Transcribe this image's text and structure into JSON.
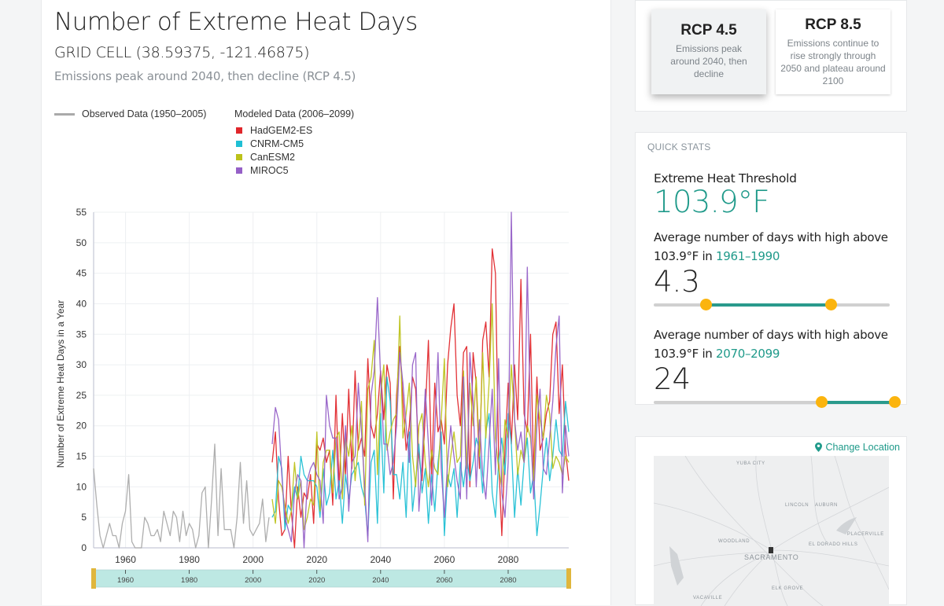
{
  "header": {
    "title": "Number of Extreme Heat Days",
    "subtitle": "GRID CELL (38.59375, -121.46875)",
    "scenario_description": "Emissions peak around 2040, then decline (RCP 4.5)"
  },
  "legend": {
    "observed_label": "Observed Data (1950–2005)",
    "modeled_label": "Modeled Data (2006–2099)",
    "models": [
      {
        "name": "HadGEM2-ES",
        "color": "#e0262b"
      },
      {
        "name": "CNRM-CM5",
        "color": "#1fbfd4"
      },
      {
        "name": "CanESM2",
        "color": "#bcc21a"
      },
      {
        "name": "MIROC5",
        "color": "#9560c7"
      }
    ]
  },
  "rcp_options": [
    {
      "title": "RCP 4.5",
      "description": "Emissions peak around 2040, then decline",
      "selected": true
    },
    {
      "title": "RCP 8.5",
      "description": "Emissions continue to rise strongly through 2050 and plateau around 2100",
      "selected": false
    }
  ],
  "quick_stats": {
    "section_label": "QUICK STATS",
    "threshold_label": "Extreme Heat Threshold",
    "threshold_value": "103.9°F",
    "stat1": {
      "text": "Average number of days with high above 103.9°F in ",
      "period": "1961–1990",
      "value": "4.3",
      "range_start_pct": 22,
      "range_end_pct": 75
    },
    "stat2": {
      "text": "Average number of days with high above 103.9°F in ",
      "period": "2070–2099",
      "value": "24",
      "range_start_pct": 71,
      "range_end_pct": 102
    }
  },
  "map": {
    "change_location_label": "Change Location",
    "places": [
      "YUBA CITY",
      "LINCOLN",
      "AUBURN",
      "PLACERVILLE",
      "WOODLAND",
      "EL DORADO HILLS",
      "SACRAMENTO",
      "ELK GROVE",
      "VACAVILLE"
    ]
  },
  "chart_data": {
    "type": "line",
    "title": "Number of Extreme Heat Days",
    "xlabel": "",
    "ylabel": "Number of Extreme Heat Days in a Year",
    "xlim": [
      1950,
      2099
    ],
    "ylim": [
      0,
      55
    ],
    "x_ticks": [
      1960,
      1980,
      2000,
      2020,
      2040,
      2060,
      2080
    ],
    "y_ticks": [
      0,
      5,
      10,
      15,
      20,
      25,
      30,
      35,
      40,
      45,
      50,
      55
    ],
    "grid": true,
    "legend_position": "top-left",
    "brush_ticks": [
      1960,
      1980,
      2000,
      2020,
      2040,
      2060,
      2080
    ],
    "brush_range": [
      1950,
      2099
    ],
    "series": [
      {
        "name": "Observed",
        "color": "#aaaaaa",
        "start_year": 1950,
        "values": [
          13,
          7,
          2,
          0,
          2,
          4,
          2,
          2,
          0,
          4,
          6,
          12,
          1,
          0,
          0,
          0,
          5,
          4,
          2,
          2,
          3,
          1,
          6,
          4,
          2,
          6,
          5,
          1,
          6,
          2,
          4,
          3,
          0,
          2,
          9,
          10,
          0,
          8,
          17,
          2,
          13,
          3,
          3,
          3,
          0,
          5,
          14,
          4,
          11,
          3,
          2,
          3,
          4,
          8,
          1,
          5
        ]
      },
      {
        "name": "HadGEM2-ES",
        "color": "#e0262b",
        "start_year": 2006,
        "values": [
          14,
          19,
          8,
          2,
          3,
          15,
          6,
          0,
          10,
          5,
          9,
          8,
          12,
          4,
          17,
          16,
          18,
          14,
          16,
          7,
          25,
          10,
          22,
          12,
          26,
          13,
          29,
          16,
          18,
          15,
          31,
          20,
          18,
          22,
          29,
          21,
          30,
          27,
          8,
          25,
          33,
          24,
          16,
          20,
          28,
          26,
          15,
          11,
          22,
          34,
          12,
          27,
          19,
          21,
          17,
          30,
          36,
          40,
          25,
          20,
          32,
          33,
          10,
          32,
          27,
          13,
          34,
          37,
          28,
          49,
          45,
          15,
          2,
          16,
          27,
          17,
          30,
          21,
          44,
          22,
          19,
          35,
          12,
          28,
          16,
          18,
          22,
          24,
          35,
          37,
          22,
          30,
          16,
          11
        ]
      },
      {
        "name": "CNRM-CM5",
        "color": "#1fbfd4",
        "start_year": 2006,
        "values": [
          5,
          6,
          15,
          13,
          3,
          7,
          6,
          10,
          8,
          15,
          12,
          11,
          11,
          11,
          10,
          5,
          13,
          7,
          9,
          16,
          8,
          11,
          4,
          12,
          8,
          12,
          13,
          14,
          10,
          8,
          2,
          14,
          16,
          4,
          22,
          9,
          28,
          24,
          12,
          12,
          8,
          14,
          5,
          19,
          6,
          11,
          17,
          9,
          13,
          4,
          12,
          6,
          14,
          19,
          2,
          12,
          10,
          13,
          5,
          14,
          10,
          15,
          11,
          14,
          18,
          16,
          9,
          19,
          22,
          9,
          5,
          14,
          18,
          12,
          22,
          17,
          5,
          13,
          7,
          14,
          18,
          9,
          12,
          2,
          7,
          13,
          18,
          11,
          15,
          21,
          16,
          15,
          24,
          19
        ]
      },
      {
        "name": "CanESM2",
        "color": "#bcc21a",
        "start_year": 2006,
        "values": [
          8,
          4,
          11,
          10,
          7,
          4,
          6,
          14,
          8,
          11,
          3,
          5,
          8,
          7,
          19,
          6,
          14,
          16,
          16,
          9,
          18,
          19,
          8,
          18,
          15,
          20,
          11,
          17,
          24,
          7,
          26,
          28,
          34,
          12,
          25,
          30,
          16,
          19,
          21,
          22,
          38,
          18,
          22,
          27,
          15,
          10,
          20,
          22,
          14,
          10,
          16,
          13,
          12,
          21,
          31,
          10,
          15,
          19,
          14,
          15,
          29,
          13,
          27,
          20,
          28,
          15,
          32,
          18,
          27,
          40,
          18,
          13,
          10,
          21,
          18,
          30,
          21,
          12,
          16,
          14,
          20,
          18,
          11,
          25,
          21,
          18,
          25,
          22,
          13,
          15,
          14,
          12,
          15,
          14
        ]
      },
      {
        "name": "MIROC5",
        "color": "#9560c7",
        "start_year": 2006,
        "values": [
          17,
          23,
          21,
          12,
          5,
          3,
          1,
          9,
          12,
          11,
          0,
          11,
          13,
          14,
          12,
          11,
          4,
          25,
          20,
          18,
          18,
          8,
          10,
          20,
          6,
          14,
          15,
          27,
          19,
          10,
          1,
          25,
          29,
          41,
          28,
          17,
          17,
          12,
          14,
          20,
          32,
          27,
          20,
          14,
          30,
          32,
          6,
          14,
          26,
          17,
          7,
          19,
          32,
          13,
          5,
          14,
          20,
          15,
          11,
          8,
          28,
          8,
          32,
          24,
          10,
          21,
          12,
          8,
          17,
          26,
          12,
          31,
          9,
          5,
          14,
          55,
          21,
          16,
          19,
          14,
          46,
          20,
          8,
          20,
          26,
          13,
          12,
          18,
          24,
          33,
          38,
          9,
          20,
          15
        ]
      }
    ]
  }
}
